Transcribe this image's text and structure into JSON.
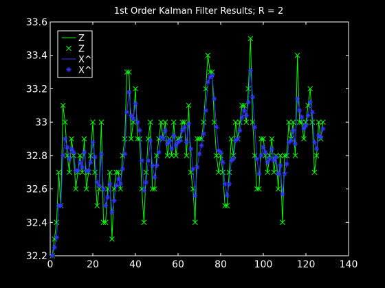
{
  "chart_data": {
    "type": "line",
    "title": "1st Order Kalman Filter Results; R = 2",
    "xlabel": "",
    "ylabel": "",
    "xlim": [
      0,
      140
    ],
    "ylim": [
      32.2,
      33.6
    ],
    "xticks": [
      0,
      20,
      40,
      60,
      80,
      100,
      120,
      140
    ],
    "yticks": [
      32.2,
      32.4,
      32.6,
      32.8,
      33,
      33.2,
      33.4,
      33.6
    ],
    "xtick_labels": [
      "0",
      "20",
      "40",
      "60",
      "80",
      "100",
      "120",
      "140"
    ],
    "ytick_labels": [
      "32.2",
      "32.4",
      "32.6",
      "32.8",
      "33",
      "33.2",
      "33.4",
      "33.6"
    ],
    "grid": false,
    "legend_position": "top-left",
    "background": "#000000",
    "axis_color": "#ffffff",
    "x": [
      1,
      2,
      3,
      4,
      5,
      6,
      7,
      8,
      9,
      10,
      11,
      12,
      13,
      14,
      15,
      16,
      17,
      18,
      19,
      20,
      21,
      22,
      23,
      24,
      25,
      26,
      27,
      28,
      29,
      30,
      31,
      32,
      33,
      34,
      35,
      36,
      37,
      38,
      39,
      40,
      41,
      42,
      43,
      44,
      45,
      46,
      47,
      48,
      49,
      50,
      51,
      52,
      53,
      54,
      55,
      56,
      57,
      58,
      59,
      60,
      61,
      62,
      63,
      64,
      65,
      66,
      67,
      68,
      69,
      70,
      71,
      72,
      73,
      74,
      75,
      76,
      77,
      78,
      79,
      80,
      81,
      82,
      83,
      84,
      85,
      86,
      87,
      88,
      89,
      90,
      91,
      92,
      93,
      94,
      95,
      96,
      97,
      98,
      99,
      100,
      101,
      102,
      103,
      104,
      105,
      106,
      107,
      108,
      109,
      110,
      111,
      112,
      113,
      114,
      115,
      116,
      117,
      118,
      119,
      120,
      121,
      122,
      123,
      124,
      125,
      126,
      127,
      128
    ],
    "series": [
      {
        "name": "Z",
        "style": "line",
        "color": "#00ff00",
        "values": [
          32.2,
          32.3,
          32.4,
          32.7,
          32.5,
          33.1,
          33.0,
          32.8,
          32.7,
          32.9,
          32.8,
          32.6,
          32.7,
          32.8,
          32.7,
          32.9,
          32.6,
          32.7,
          32.8,
          33.0,
          32.7,
          32.5,
          32.6,
          33.0,
          32.4,
          32.4,
          32.6,
          32.7,
          32.3,
          32.6,
          32.7,
          32.7,
          32.6,
          32.8,
          32.9,
          33.3,
          33.3,
          32.9,
          33.0,
          33.2,
          32.9,
          32.9,
          32.6,
          32.4,
          32.7,
          32.9,
          33.0,
          32.6,
          32.6,
          32.8,
          32.9,
          33.0,
          32.9,
          33.0,
          32.8,
          32.9,
          32.8,
          33.0,
          32.8,
          32.9,
          32.9,
          33.0,
          33.0,
          32.8,
          33.1,
          32.7,
          32.6,
          32.4,
          32.9,
          32.9,
          32.9,
          33.0,
          33.2,
          33.4,
          33.3,
          33.3,
          33.0,
          32.8,
          32.7,
          32.8,
          32.7,
          32.5,
          32.5,
          32.7,
          32.9,
          32.8,
          33.0,
          32.9,
          33.0,
          33.1,
          33.1,
          33.0,
          33.2,
          33.5,
          33.0,
          32.8,
          32.6,
          32.6,
          32.9,
          32.9,
          32.8,
          32.7,
          32.8,
          32.9,
          32.7,
          32.8,
          32.6,
          32.8,
          32.4,
          32.8,
          32.8,
          33.0,
          32.9,
          33.0,
          32.8,
          33.4,
          33.0,
          33.0,
          32.9,
          33.0,
          33.1,
          33.2,
          33.0,
          32.7,
          32.8,
          33.0,
          32.9,
          33.0
        ]
      },
      {
        "name": "Z",
        "style": "markers",
        "marker": "x",
        "color": "#00ff00",
        "values": [
          32.2,
          32.3,
          32.4,
          32.7,
          32.5,
          33.1,
          33.0,
          32.8,
          32.7,
          32.9,
          32.8,
          32.6,
          32.7,
          32.8,
          32.7,
          32.9,
          32.6,
          32.7,
          32.8,
          33.0,
          32.7,
          32.5,
          32.6,
          33.0,
          32.4,
          32.4,
          32.6,
          32.7,
          32.3,
          32.6,
          32.7,
          32.7,
          32.6,
          32.8,
          32.9,
          33.3,
          33.3,
          32.9,
          33.0,
          33.2,
          32.9,
          32.9,
          32.6,
          32.4,
          32.7,
          32.9,
          33.0,
          32.6,
          32.6,
          32.8,
          32.9,
          33.0,
          32.9,
          33.0,
          32.8,
          32.9,
          32.8,
          33.0,
          32.8,
          32.9,
          32.9,
          33.0,
          33.0,
          32.8,
          33.1,
          32.7,
          32.6,
          32.4,
          32.9,
          32.9,
          32.9,
          33.0,
          33.2,
          33.4,
          33.3,
          33.3,
          33.0,
          32.8,
          32.7,
          32.8,
          32.7,
          32.5,
          32.5,
          32.7,
          32.9,
          32.8,
          33.0,
          32.9,
          33.0,
          33.1,
          33.1,
          33.0,
          33.2,
          33.5,
          33.0,
          32.8,
          32.6,
          32.6,
          32.9,
          32.9,
          32.8,
          32.7,
          32.8,
          32.9,
          32.7,
          32.8,
          32.6,
          32.8,
          32.4,
          32.8,
          32.8,
          33.0,
          32.9,
          33.0,
          32.8,
          33.4,
          33.0,
          33.0,
          32.9,
          33.0,
          33.1,
          33.2,
          33.0,
          32.7,
          32.8,
          33.0,
          32.9,
          33.0
        ]
      },
      {
        "name": "X^",
        "style": "line",
        "color": "#3333ff",
        "values": [
          32.2,
          32.25,
          32.31,
          32.5,
          32.5,
          32.8,
          32.9,
          32.85,
          32.78,
          32.84,
          32.82,
          32.71,
          32.71,
          32.76,
          32.73,
          32.82,
          32.71,
          32.71,
          32.76,
          32.88,
          32.79,
          32.64,
          32.62,
          32.81,
          32.6,
          32.5,
          32.55,
          32.63,
          32.46,
          32.53,
          32.62,
          32.66,
          32.63,
          32.72,
          32.81,
          33.06,
          33.18,
          33.04,
          33.02,
          33.11,
          33.0,
          32.95,
          32.77,
          32.59,
          32.64,
          32.77,
          32.89,
          32.74,
          32.67,
          32.74,
          32.82,
          32.91,
          32.9,
          32.95,
          32.87,
          32.89,
          32.84,
          32.92,
          32.86,
          32.88,
          32.89,
          32.95,
          32.97,
          32.88,
          32.99,
          32.84,
          32.72,
          32.56,
          32.73,
          32.81,
          32.86,
          32.93,
          33.07,
          33.24,
          33.27,
          33.28,
          33.14,
          32.97,
          32.83,
          32.82,
          32.76,
          32.63,
          32.56,
          32.63,
          32.77,
          32.78,
          32.89,
          32.9,
          32.95,
          33.03,
          33.07,
          33.04,
          33.12,
          33.31,
          33.15,
          32.97,
          32.78,
          32.69,
          32.8,
          32.85,
          32.82,
          32.76,
          32.78,
          32.84,
          32.77,
          32.79,
          32.69,
          32.74,
          32.57,
          32.69,
          32.75,
          32.88,
          32.89,
          32.95,
          32.87,
          33.14,
          33.07,
          33.03,
          32.96,
          32.98,
          33.04,
          33.12,
          33.06,
          32.88,
          32.84,
          32.92,
          32.91,
          32.96
        ]
      },
      {
        "name": "X^",
        "style": "markers",
        "marker": "*",
        "color": "#3333ff",
        "values": [
          32.2,
          32.25,
          32.31,
          32.5,
          32.5,
          32.8,
          32.9,
          32.85,
          32.78,
          32.84,
          32.82,
          32.71,
          32.71,
          32.76,
          32.73,
          32.82,
          32.71,
          32.71,
          32.76,
          32.88,
          32.79,
          32.64,
          32.62,
          32.81,
          32.6,
          32.5,
          32.55,
          32.63,
          32.46,
          32.53,
          32.62,
          32.66,
          32.63,
          32.72,
          32.81,
          33.06,
          33.18,
          33.04,
          33.02,
          33.11,
          33.0,
          32.95,
          32.77,
          32.59,
          32.64,
          32.77,
          32.89,
          32.74,
          32.67,
          32.74,
          32.82,
          32.91,
          32.9,
          32.95,
          32.87,
          32.89,
          32.84,
          32.92,
          32.86,
          32.88,
          32.89,
          32.95,
          32.97,
          32.88,
          32.99,
          32.84,
          32.72,
          32.56,
          32.73,
          32.81,
          32.86,
          32.93,
          33.07,
          33.24,
          33.27,
          33.28,
          33.14,
          32.97,
          32.83,
          32.82,
          32.76,
          32.63,
          32.56,
          32.63,
          32.77,
          32.78,
          32.89,
          32.9,
          32.95,
          33.03,
          33.07,
          33.04,
          33.12,
          33.31,
          33.15,
          32.97,
          32.78,
          32.69,
          32.8,
          32.85,
          32.82,
          32.76,
          32.78,
          32.84,
          32.77,
          32.79,
          32.69,
          32.74,
          32.57,
          32.69,
          32.75,
          32.88,
          32.89,
          32.95,
          32.87,
          33.14,
          33.07,
          33.03,
          32.96,
          32.98,
          33.04,
          33.12,
          33.06,
          32.88,
          32.84,
          32.92,
          32.91,
          32.96
        ]
      }
    ]
  }
}
